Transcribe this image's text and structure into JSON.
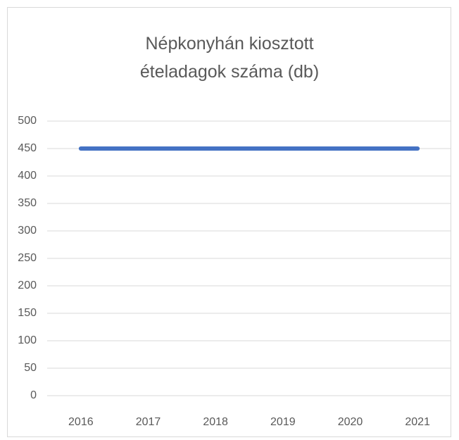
{
  "chart_data": {
    "type": "line",
    "title": "Népkonyhán kiosztott ételadagok száma (db)",
    "categories": [
      "2016",
      "2017",
      "2018",
      "2019",
      "2020",
      "2021"
    ],
    "series": [
      {
        "name": "Népkonyhán kiosztott ételadagok száma (db)",
        "color": "#4472c4",
        "values": [
          450,
          450,
          450,
          450,
          450,
          450
        ]
      }
    ],
    "ylim": [
      0,
      500
    ],
    "yticks": [
      0,
      50,
      100,
      150,
      200,
      250,
      300,
      350,
      400,
      450,
      500
    ],
    "grid": true
  }
}
